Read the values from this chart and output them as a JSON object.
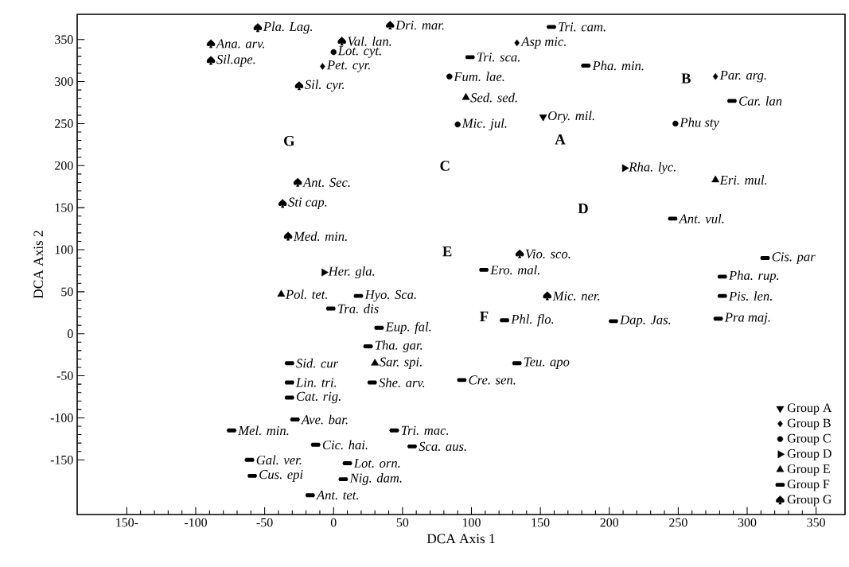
{
  "chart_data": {
    "type": "scatter",
    "xlabel": "DCA Axis 1",
    "ylabel": "DCA Axis 2",
    "xlim": [
      -186,
      371
    ],
    "ylim": [
      -215,
      380
    ],
    "xticks": [
      {
        "value": -150,
        "label": "150-"
      },
      -100,
      -50,
      0,
      50,
      100,
      150,
      200,
      250,
      300,
      350
    ],
    "yticks": [
      -150,
      -100,
      -50,
      0,
      50,
      100,
      150,
      200,
      250,
      300,
      350
    ],
    "legend": "bottom right",
    "series": [
      {
        "name": "Group A",
        "color": "#000000",
        "marker": "triangle_down",
        "x": [
          152
        ],
        "values": [
          258
        ],
        "value_labels": [
          "Ory. mil."
        ]
      },
      {
        "name": "Group B",
        "color": "#000000",
        "marker": "diamond",
        "x": [
          133,
          -8,
          277
        ],
        "values": [
          346,
          318,
          306
        ],
        "value_labels": [
          "Asp mic.",
          "Pet. cyr.",
          "Par. arg."
        ]
      },
      {
        "name": "Group C",
        "color": "#000000",
        "marker": "circle",
        "x": [
          0,
          84,
          90,
          248
        ],
        "values": [
          335,
          306,
          249,
          250
        ],
        "value_labels": [
          "Lot. cyt.",
          "Fum. lae.",
          "Mic. jul.",
          "Phu sty"
        ]
      },
      {
        "name": "Group D",
        "color": "#000000",
        "marker": "triangle_right",
        "x": [
          211,
          -7
        ],
        "values": [
          197,
          73
        ],
        "value_labels": [
          "Rha. lyc.",
          "Her. gla."
        ]
      },
      {
        "name": "Group E",
        "color": "#000000",
        "marker": "triangle",
        "x": [
          96,
          277,
          -38,
          30
        ],
        "values": [
          281,
          183,
          47,
          -35
        ],
        "value_labels": [
          "Sed. sed.",
          "Eri. mul.",
          "Pol. tet.",
          "Sar. spi."
        ]
      },
      {
        "name": "Group F",
        "color": "#000000",
        "x": [
          158,
          99,
          183,
          289,
          246,
          313,
          109,
          282,
          282,
          279,
          124,
          203,
          18,
          -2,
          33,
          25,
          133,
          -32,
          -32,
          28,
          93,
          -32,
          -28,
          -74,
          44,
          -13,
          57,
          -61,
          10,
          -59,
          7,
          -17
        ],
        "values": [
          365,
          329,
          319,
          277,
          137,
          90,
          76,
          68,
          45,
          18,
          16,
          15,
          45,
          30,
          7,
          -15,
          -35,
          -35,
          -58,
          -58,
          -55,
          -76,
          -102,
          -115,
          -115,
          -132,
          -134,
          -150,
          -154,
          -169,
          -173,
          -192
        ],
        "value_labels": [
          "Tri. cam.",
          "Tri. sca.",
          "Pha. min.",
          "Car. lan",
          "Ant. vul.",
          "Cis. par",
          "Ero. mal.",
          "Pha. rup.",
          "Pis. len.",
          "Pra maj.",
          "Phl. flo.",
          "Dap. Jas.",
          "Hyo. Sca.",
          "Tra. dis",
          "Eup. fal.",
          "Tha. gar.",
          "Teu. apo",
          "Sid. cur",
          "Lin. tri.",
          "She. arv.",
          "Cre. sen.",
          "Cat. rig.",
          "Ave. bar.",
          "Mel. min.",
          "Tri. mac.",
          "Cic. hai.",
          "Sca. aus.",
          "Gal. ver.",
          "Lot. orn.",
          "Cus. epi",
          "Nig. dam.",
          "Ant. tet."
        ]
      },
      {
        "name": "Group G",
        "color": "#000000",
        "x": [
          -55,
          -89,
          -89,
          6,
          41,
          -25,
          -26,
          -37,
          -33,
          135,
          155
        ],
        "values": [
          364,
          345,
          325,
          348,
          367,
          295,
          180,
          155,
          116,
          95,
          45
        ],
        "value_labels": [
          "Pla. Lag.",
          "Ana. arv.",
          "Sil.ape.",
          "Val. lan.",
          "Dri. mar.",
          "Sil. cyr.",
          "Ant. Sec.",
          "Sti cap.",
          "Med. min.",
          "Vio. sco.",
          "Mic. ner."
        ]
      }
    ],
    "annotations": [
      "A",
      "B",
      "C",
      "D",
      "E",
      "F",
      "G"
    ]
  }
}
